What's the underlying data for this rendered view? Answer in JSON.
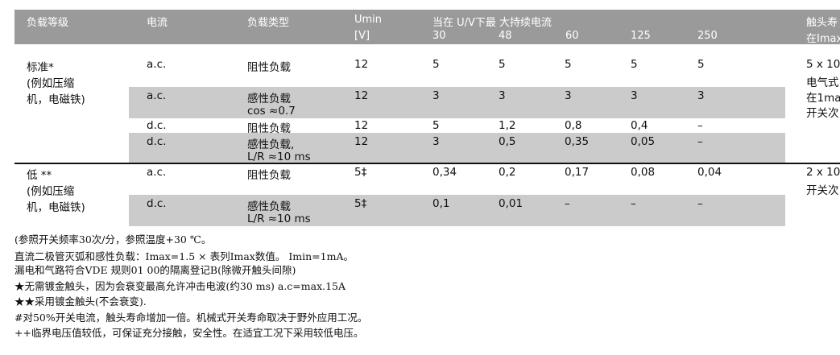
{
  "header": {
    "col_grade": "负载等级",
    "col_current": "电流",
    "col_type": "负载类型",
    "col_umin": "Umin",
    "col_umin_unit": "[V]",
    "col_max": "当在 U/V下最 大持续电流",
    "voltages": [
      "30",
      "48",
      "60",
      "125",
      "250"
    ],
    "col_life": "触头寿",
    "col_life_sub": "在Imax"
  },
  "groups": [
    {
      "grade": [
        "标准*",
        "(例如压缩",
        "机，电磁铁)"
      ],
      "life": [
        "5 x 10",
        "电气式",
        "在1ma",
        "开关次"
      ],
      "rows": [
        {
          "current": "a.c.",
          "type": [
            "阻性负载"
          ],
          "umin": "12",
          "values": [
            "5",
            "5",
            "5",
            "5",
            "5"
          ]
        },
        {
          "current": "a.c.",
          "type": [
            "感性负载",
            "cos ≈0.7"
          ],
          "umin": "12",
          "values": [
            "3",
            "3",
            "3",
            "3",
            "3"
          ]
        },
        {
          "current": "d.c.",
          "type": [
            "阻性负载"
          ],
          "umin": "12",
          "values": [
            "5",
            "1,2",
            "0,8",
            "0,4",
            "–"
          ]
        },
        {
          "current": "d.c.",
          "type": [
            "感性负载,",
            "L/R ≈10 ms"
          ],
          "umin": "12",
          "values": [
            "3",
            "0,5",
            "0,35",
            "0,05",
            "–"
          ]
        }
      ]
    },
    {
      "grade": [
        "低 **",
        "(例如压缩",
        "机，电磁铁)"
      ],
      "life": [
        "2 x 10",
        "开关次"
      ],
      "rows": [
        {
          "current": "a.c.",
          "type": [
            "阻性负载"
          ],
          "umin": "5‡",
          "values": [
            "0,34",
            "0,2",
            "0,17",
            "0,08",
            "0,04"
          ]
        },
        {
          "current": "d.c.",
          "type": [
            "感性负载",
            "L/R ≈10 ms"
          ],
          "umin": "5‡",
          "values": [
            "0,1",
            "0,01",
            "–",
            "–",
            "–"
          ]
        }
      ]
    }
  ],
  "notes": [
    "(参照开关频率30次/分，参照温度+30 ℃。",
    "直流二极管灭弧和感性负载：Imax=1.5 × 表列Imax数值。 Imin=1mA。",
    "漏电和气路符合VDE 规则01 00的隔离登记B(除微开触头间隙)",
    "★无需镀金触头，因为会衰变最高允许冲击电波(约30 ms) a.c=max.15A",
    "★★采用镀金触头(不会衰变).",
    "#对50%开关电流，触头寿命增加一倍。机械式开关寿命取决于野外应用工况。",
    "++临界电压值较低，可保证充分接触，安全性。在适宜工况下采用较低电压。"
  ]
}
